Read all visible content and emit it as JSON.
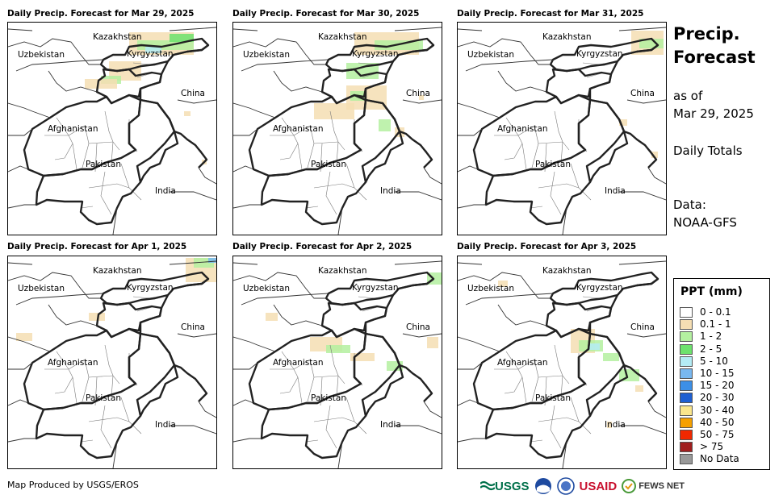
{
  "panels": [
    {
      "title": "Daily Precip. Forecast for Mar 29, 2025"
    },
    {
      "title": "Daily Precip. Forecast for Mar 30, 2025"
    },
    {
      "title": "Daily Precip. Forecast for Mar 31, 2025"
    },
    {
      "title": "Daily Precip. Forecast for Apr 1, 2025"
    },
    {
      "title": "Daily Precip. Forecast for Apr 2, 2025"
    },
    {
      "title": "Daily Precip. Forecast for Apr 3, 2025"
    }
  ],
  "map_labels": {
    "kazakhstan": "Kazakhstan",
    "uzbekistan": "Uzbekistan",
    "kyrgyzstan": "Kyrgyzstan",
    "china": "China",
    "afghanistan": "Afghanistan",
    "pakistan": "Pakistan",
    "india": "India"
  },
  "side": {
    "title_line1": "Precip.",
    "title_line2": "Forecast",
    "asof_line1": "as of",
    "asof_line2": "Mar 29, 2025",
    "daily_totals": "Daily Totals",
    "data_line1": "Data:",
    "data_line2": "NOAA-GFS"
  },
  "legend": {
    "title": "PPT (mm)",
    "items": [
      {
        "label": "0 - 0.1",
        "color": "#ffffff"
      },
      {
        "label": "0.1 - 1",
        "color": "#f5deb3"
      },
      {
        "label": "1 - 2",
        "color": "#b4f0a0"
      },
      {
        "label": "2 - 5",
        "color": "#6de26d"
      },
      {
        "label": "5 - 10",
        "color": "#b4ecf5"
      },
      {
        "label": "10 - 15",
        "color": "#78b8f0"
      },
      {
        "label": "15 - 20",
        "color": "#3c8fe6"
      },
      {
        "label": "20 - 30",
        "color": "#1e5fd2"
      },
      {
        "label": "30 - 40",
        "color": "#fae68c"
      },
      {
        "label": "40 - 50",
        "color": "#f5a000"
      },
      {
        "label": "50 - 75",
        "color": "#f02800"
      },
      {
        "label": "> 75",
        "color": "#a01e1e"
      },
      {
        "label": "No Data",
        "color": "#999999"
      }
    ]
  },
  "footer": "Map Produced by USGS/EROS",
  "logos": {
    "usgs": "USGS",
    "usaid": "USAID",
    "fewsnet": "FEWS NET"
  }
}
